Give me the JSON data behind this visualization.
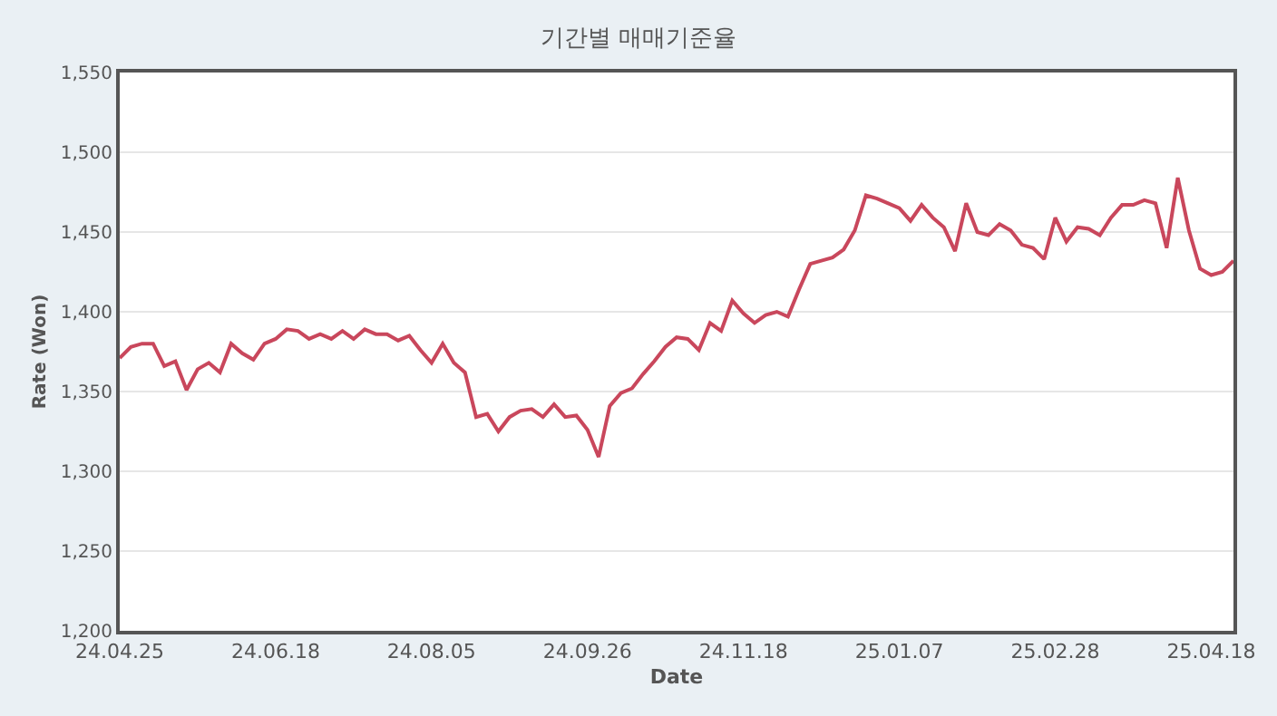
{
  "chart_data": {
    "type": "line",
    "title": "기간별 매매기준율",
    "xlabel": "Date",
    "ylabel": "Rate (Won)",
    "categories": [
      "24.04.25",
      null,
      null,
      null,
      null,
      null,
      null,
      null,
      null,
      null,
      null,
      null,
      null,
      null,
      "24.06.18",
      null,
      null,
      null,
      null,
      null,
      null,
      null,
      null,
      null,
      null,
      null,
      null,
      null,
      "24.08.05",
      null,
      null,
      null,
      null,
      null,
      null,
      null,
      null,
      null,
      null,
      null,
      null,
      null,
      "24.09.26",
      null,
      null,
      null,
      null,
      null,
      null,
      null,
      null,
      null,
      null,
      null,
      null,
      null,
      "24.11.18",
      null,
      null,
      null,
      null,
      null,
      null,
      null,
      null,
      null,
      null,
      null,
      null,
      null,
      "25.01.07",
      null,
      null,
      null,
      null,
      null,
      null,
      null,
      null,
      null,
      null,
      null,
      null,
      null,
      "25.02.28",
      null,
      null,
      null,
      null,
      null,
      null,
      null,
      null,
      null,
      null,
      null,
      null,
      null,
      "25.04.18",
      null,
      null
    ],
    "series": [
      {
        "color": "#c9475c",
        "values": [
          1371,
          1378,
          1380,
          1380,
          1366,
          1369,
          1351,
          1364,
          1368,
          1362,
          1380,
          1374,
          1370,
          1380,
          1383,
          1389,
          1388,
          1383,
          1386,
          1383,
          1388,
          1383,
          1389,
          1386,
          1386,
          1382,
          1385,
          1376,
          1368,
          1380,
          1368,
          1362,
          1334,
          1336,
          1325,
          1334,
          1338,
          1339,
          1334,
          1342,
          1334,
          1335,
          1326,
          1309,
          1341,
          1349,
          1352,
          1361,
          1369,
          1378,
          1384,
          1383,
          1376,
          1393,
          1388,
          1407,
          1399,
          1393,
          1398,
          1400,
          1397,
          1414,
          1430,
          1432,
          1434,
          1439,
          1451,
          1473,
          1471,
          1468,
          1465,
          1457,
          1467,
          1459,
          1453,
          1438,
          1468,
          1450,
          1448,
          1455,
          1451,
          1442,
          1440,
          1433,
          1459,
          1444,
          1453,
          1452,
          1448,
          1459,
          1467,
          1467,
          1470,
          1468,
          1440,
          1484,
          1451,
          1427,
          1423,
          1425,
          1432
        ]
      }
    ],
    "ylim": [
      1200,
      1550
    ],
    "yticks": [
      {
        "value": 1200,
        "label": "1,200"
      },
      {
        "value": 1250,
        "label": "1,250"
      },
      {
        "value": 1300,
        "label": "1,300"
      },
      {
        "value": 1350,
        "label": "1,350"
      },
      {
        "value": 1400,
        "label": "1,400"
      },
      {
        "value": 1450,
        "label": "1,450"
      },
      {
        "value": 1500,
        "label": "1,500"
      },
      {
        "value": 1550,
        "label": "1,550"
      }
    ],
    "grid": "y",
    "marker": "none",
    "line_style": "solid"
  }
}
